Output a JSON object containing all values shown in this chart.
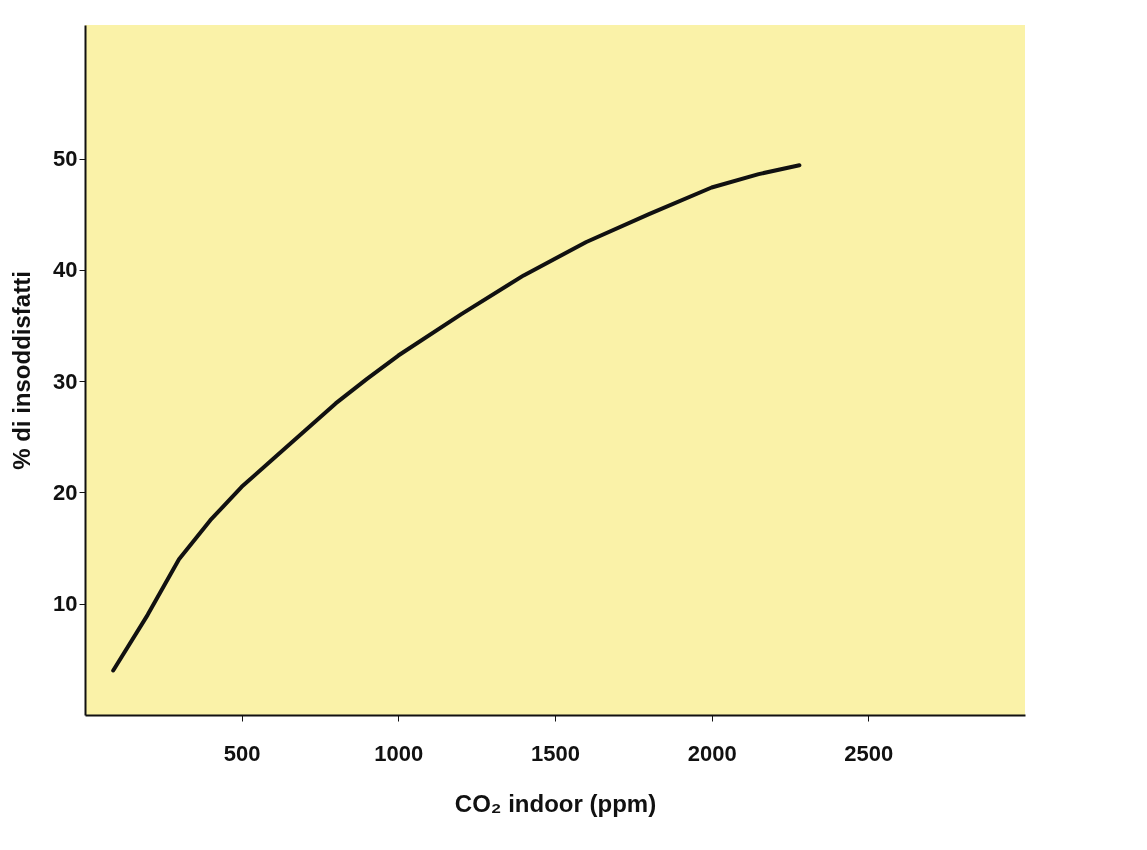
{
  "chart_data": {
    "type": "line",
    "xlabel": "CO₂ indoor (ppm)",
    "ylabel": "% di insoddisfatti",
    "xlim": [
      0,
      3000
    ],
    "ylim": [
      0,
      62
    ],
    "xticks": [
      500,
      1000,
      1500,
      2000,
      2500
    ],
    "yticks": [
      10,
      20,
      30,
      40,
      50
    ],
    "grid": false,
    "marker": "none",
    "line_style": "solid",
    "series": [
      {
        "color": "#111111",
        "x": [
          90,
          200,
          300,
          400,
          500,
          600,
          700,
          800,
          900,
          1000,
          1200,
          1400,
          1600,
          1800,
          2000,
          2150,
          2280
        ],
        "values": [
          4,
          9,
          14,
          17.5,
          20.5,
          23,
          25.5,
          28,
          30.2,
          32.3,
          36,
          39.5,
          42.5,
          45,
          47.4,
          48.6,
          49.4
        ]
      }
    ]
  }
}
